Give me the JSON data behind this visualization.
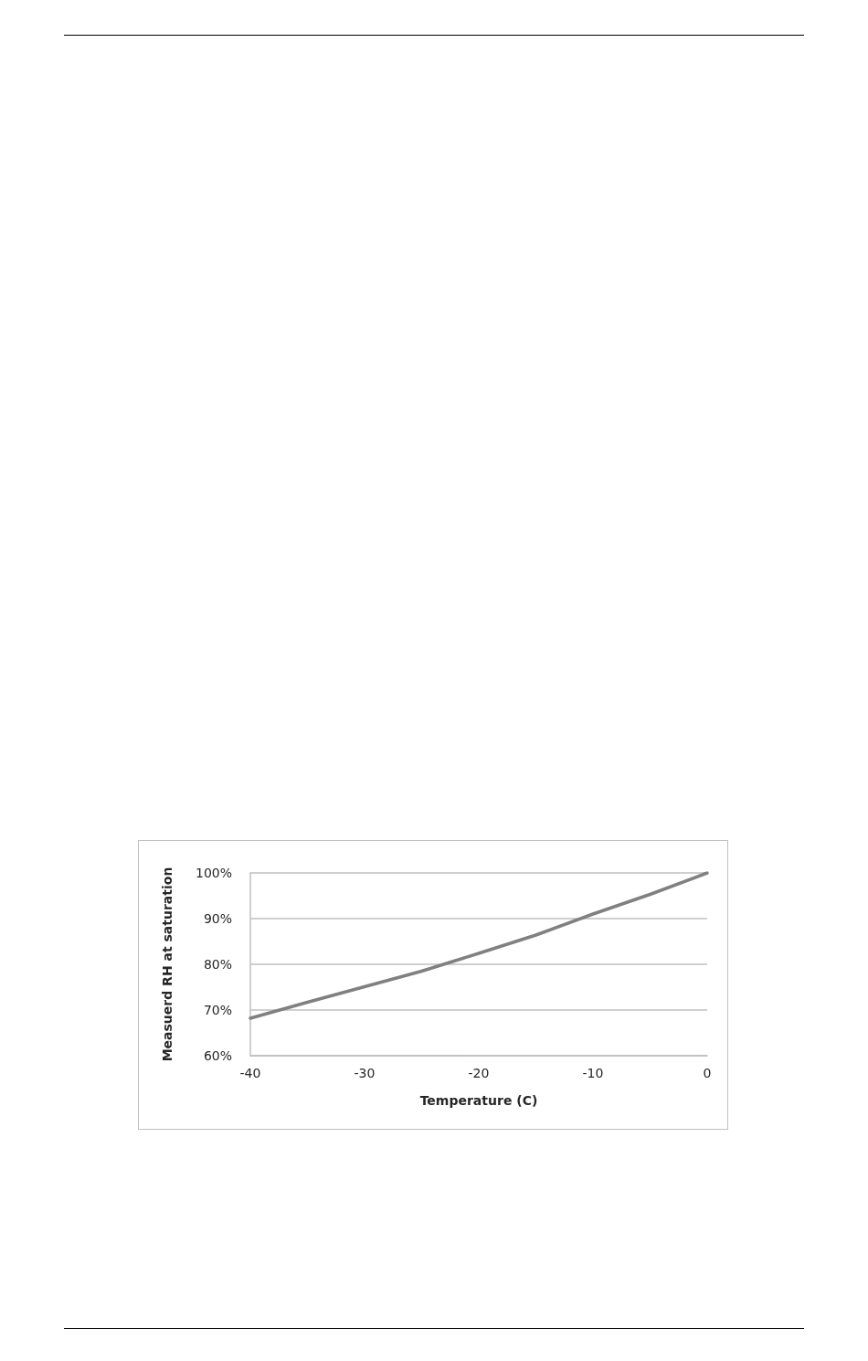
{
  "chart_data": {
    "type": "line",
    "xlabel": "Temperature (C)",
    "ylabel": "Measuerd RH at saturation",
    "x": [
      -40,
      -35,
      -30,
      -25,
      -20,
      -15,
      -10,
      -5,
      0
    ],
    "series": [
      {
        "color": "#808080",
        "values": [
          68.2,
          71.7,
          75.1,
          78.5,
          82.4,
          86.4,
          91.0,
          95.3,
          100
        ]
      }
    ],
    "xlim": [
      -40,
      0
    ],
    "xticks": [
      -40,
      -30,
      -20,
      -10,
      0
    ],
    "ylim": [
      60,
      100
    ],
    "yticks": [
      {
        "value": 60,
        "label": "60%"
      },
      {
        "value": 70,
        "label": "70%"
      },
      {
        "value": 80,
        "label": "80%"
      },
      {
        "value": 90,
        "label": "90%"
      },
      {
        "value": 100,
        "label": "100%"
      }
    ],
    "grid": "y"
  }
}
